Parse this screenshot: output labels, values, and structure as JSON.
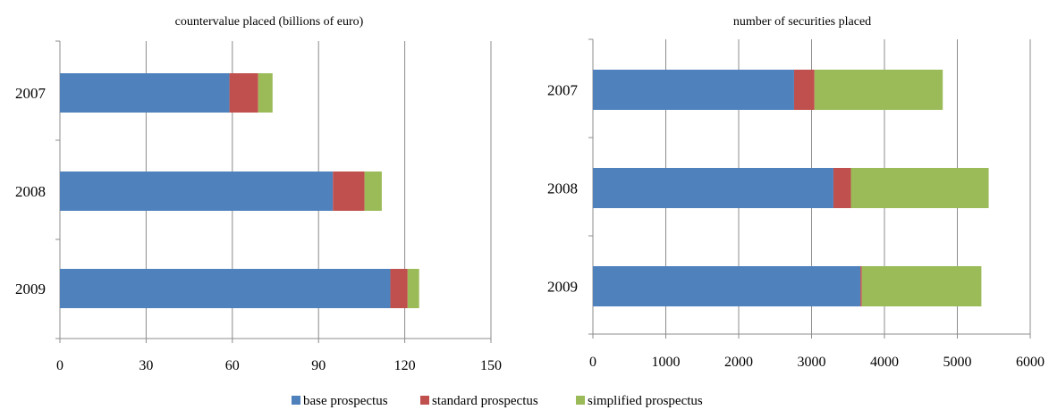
{
  "colors": {
    "base": "#4F81BD",
    "standard": "#C0504D",
    "simplified": "#9BBB59",
    "grid": "#8c8c8c",
    "axis": "#8c8c8c"
  },
  "legend": [
    {
      "name": "base prospectus",
      "color": "#4F81BD"
    },
    {
      "name": "standard prospectus",
      "color": "#C0504D"
    },
    {
      "name": "simplified prospectus",
      "color": "#9BBB59"
    }
  ],
  "chart_data": [
    {
      "type": "bar",
      "orientation": "horizontal",
      "stacked": true,
      "title": "countervalue placed (billions of euro)",
      "categories": [
        "2007",
        "2008",
        "2009"
      ],
      "xlim": [
        0,
        150
      ],
      "xticks": [
        "0",
        "30",
        "60",
        "90",
        "120",
        "150"
      ],
      "grid": true,
      "series": [
        {
          "name": "base prospectus",
          "values": [
            59,
            95,
            115
          ]
        },
        {
          "name": "standard prospectus",
          "values": [
            10,
            11,
            6
          ]
        },
        {
          "name": "simplified prospectus",
          "values": [
            5,
            6,
            4
          ]
        }
      ]
    },
    {
      "type": "bar",
      "orientation": "horizontal",
      "stacked": true,
      "title": "number of securities placed",
      "categories": [
        "2007",
        "2008",
        "2009"
      ],
      "xlim": [
        0,
        6000
      ],
      "xticks": [
        "0",
        "1000",
        "2000",
        "3000",
        "4000",
        "5000",
        "6000"
      ],
      "grid": true,
      "series": [
        {
          "name": "base prospectus",
          "values": [
            2760,
            3300,
            3670
          ]
        },
        {
          "name": "standard prospectus",
          "values": [
            280,
            240,
            20
          ]
        },
        {
          "name": "simplified prospectus",
          "values": [
            1760,
            1890,
            1640
          ]
        }
      ]
    }
  ]
}
